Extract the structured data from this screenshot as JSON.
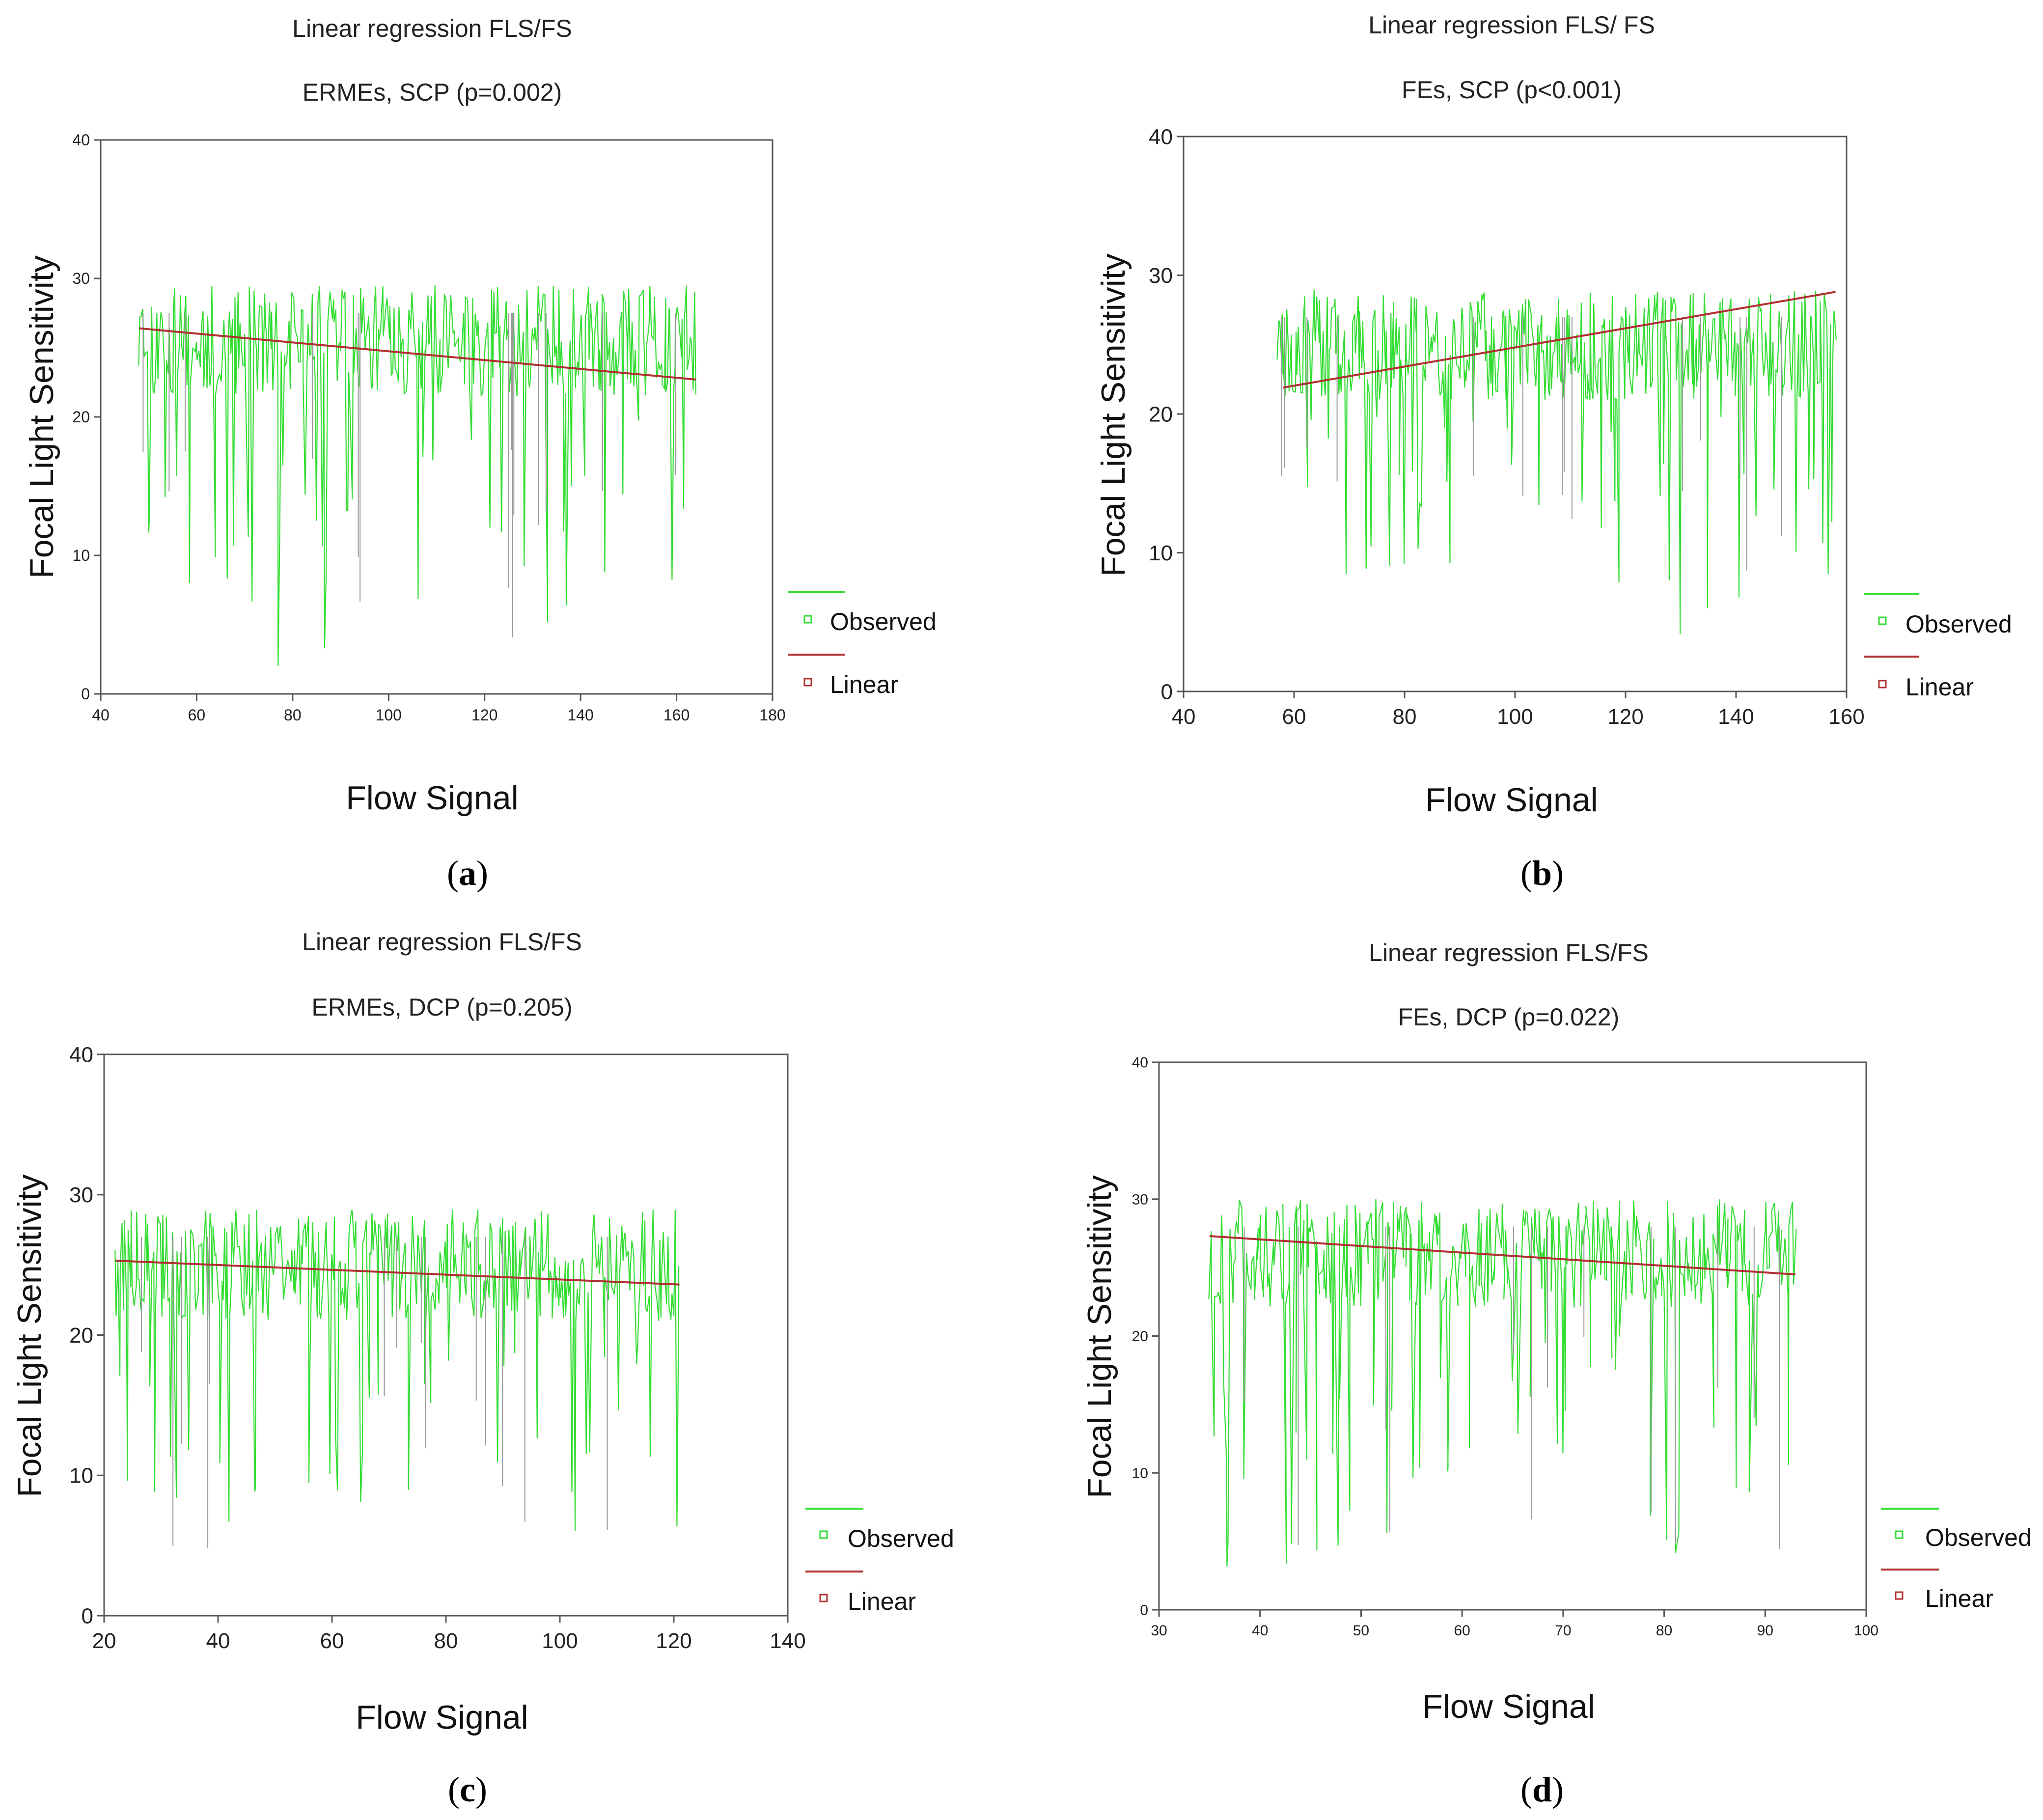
{
  "colors": {
    "observed": "#33dd33",
    "linear": "#b03030",
    "gray_lines": "#999999",
    "axis": "#555555"
  },
  "chart_data": [
    {
      "id": "a",
      "panel_label": "a",
      "type": "line",
      "title": "Linear regression FLS/FS",
      "subtitle": "ERMEs, SCP (p=0.002)",
      "xlabel": "Flow Signal",
      "ylabel": "Focal Light Sensitivity",
      "xlim": [
        40,
        180
      ],
      "ylim": [
        0,
        40
      ],
      "xticks": [
        "40",
        "60",
        "80",
        "100",
        "120",
        "140",
        "160",
        "180"
      ],
      "yticks": [
        "0",
        "10",
        "20",
        "30",
        "40"
      ],
      "legend": {
        "observed": "Observed",
        "linear": "Linear",
        "placement": "right"
      },
      "observed_range": [
        48,
        164
      ],
      "linear": {
        "x": [
          48,
          164
        ],
        "y": [
          26.4,
          22.7
        ]
      },
      "seed": 11,
      "mean": 25.5
    },
    {
      "id": "b",
      "panel_label": "b",
      "type": "line",
      "title": "Linear regression FLS/ FS",
      "subtitle": "FEs, SCP (p<0.001)",
      "xlabel": "Flow Signal",
      "ylabel": "Focal Light Sensitivity",
      "xlim": [
        40,
        160
      ],
      "ylim": [
        0,
        40
      ],
      "xticks": [
        "40",
        "60",
        "80",
        "100",
        "120",
        "140",
        "160"
      ],
      "yticks": [
        "0",
        "10",
        "20",
        "30",
        "40"
      ],
      "legend": {
        "observed": "Observed",
        "linear": "Linear",
        "placement": "right"
      },
      "observed_range": [
        57,
        158
      ],
      "linear": {
        "x": [
          58,
          158
        ],
        "y": [
          21.9,
          28.8
        ]
      },
      "seed": 23,
      "mean": 25.0
    },
    {
      "id": "c",
      "panel_label": "c",
      "type": "line",
      "title": "Linear regression FLS/FS",
      "subtitle": "ERMEs, DCP (p=0.205)",
      "xlabel": "Flow Signal",
      "ylabel": "Focal Light Sensitivity",
      "xlim": [
        20,
        140
      ],
      "ylim": [
        0,
        40
      ],
      "xticks": [
        "20",
        "40",
        "60",
        "80",
        "100",
        "120",
        "140"
      ],
      "yticks": [
        "0",
        "10",
        "20",
        "30",
        "40"
      ],
      "legend": {
        "observed": "Observed",
        "linear": "Linear",
        "placement": "right"
      },
      "observed_range": [
        22,
        121
      ],
      "linear": {
        "x": [
          22,
          121
        ],
        "y": [
          25.3,
          23.6
        ]
      },
      "seed": 37,
      "mean": 25.0
    },
    {
      "id": "d",
      "panel_label": "d",
      "type": "line",
      "title": "Linear regression FLS/FS",
      "subtitle": "FEs, DCP (p=0.022)",
      "xlabel": "Flow Signal",
      "ylabel": "Focal Light Sensitivity",
      "xlim": [
        30,
        100
      ],
      "ylim": [
        0,
        40
      ],
      "xticks": [
        "30",
        "40",
        "50",
        "60",
        "70",
        "80",
        "90",
        "100"
      ],
      "yticks": [
        "0",
        "10",
        "20",
        "30",
        "40"
      ],
      "legend": {
        "observed": "Observed",
        "linear": "Linear",
        "placement": "right"
      },
      "observed_range": [
        35,
        93
      ],
      "linear": {
        "x": [
          35,
          93
        ],
        "y": [
          27.3,
          24.5
        ]
      },
      "seed": 53,
      "mean": 26.0
    }
  ]
}
